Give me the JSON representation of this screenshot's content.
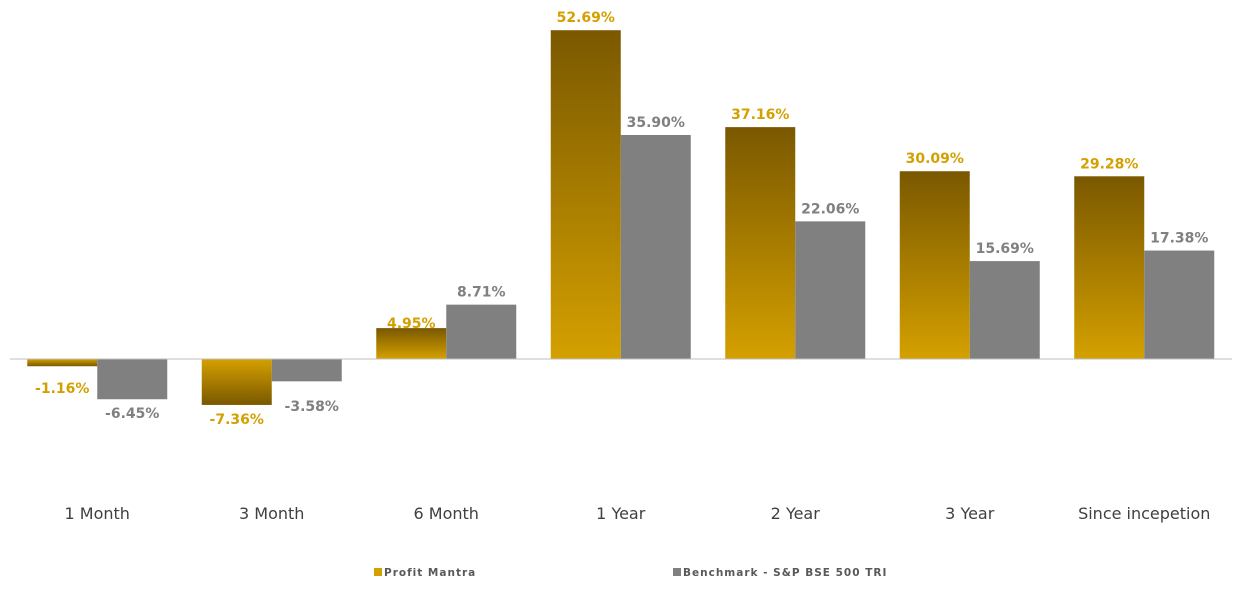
{
  "chart_data": {
    "type": "bar",
    "title": "",
    "xlabel": "",
    "ylabel": "",
    "categories": [
      "1 Month",
      "3 Month",
      "6 Month",
      "1 Year",
      "2 Year",
      "3 Year",
      "Since incepetion"
    ],
    "series": [
      {
        "name": "Profit Mantra",
        "color": "#d4a000",
        "color_top": "#7a5800",
        "values": [
          -1.16,
          -7.36,
          4.95,
          52.69,
          37.16,
          30.09,
          29.28
        ],
        "labels": [
          "-1.16%",
          "-7.36%",
          "4.95%",
          "52.69%",
          "37.16%",
          "30.09%",
          "29.28%"
        ]
      },
      {
        "name": "Benchmark - S&P BSE 500 TRI",
        "color": "#808080",
        "values": [
          -6.45,
          -3.58,
          8.71,
          35.9,
          22.06,
          15.69,
          17.38
        ],
        "labels": [
          "-6.45%",
          "-3.58%",
          "8.71%",
          "35.90%",
          "22.06%",
          "15.69%",
          "17.38%"
        ]
      }
    ],
    "ylim": [
      -15,
      55
    ],
    "grid": false,
    "legend_position": "bottom"
  }
}
